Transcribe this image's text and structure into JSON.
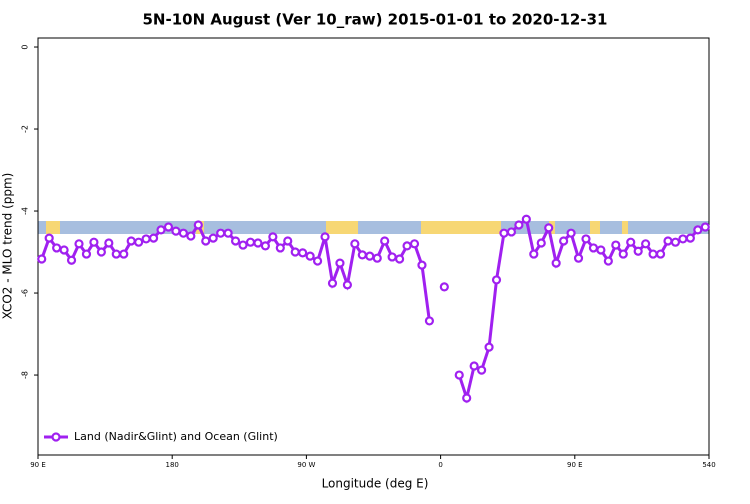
{
  "chart_data": {
    "type": "line",
    "title": "5N-10N August (Ver 10_raw)   2015-01-01 to 2020-12-31",
    "x_label": "Longitude (deg E)",
    "y_label": "XCO2 - MLO trend (ppm)",
    "xlim": [
      90,
      540
    ],
    "ylim": [
      -9.95,
      0.22
    ],
    "xticks": [
      {
        "value": 90,
        "label": "90 E"
      },
      180,
      {
        "value": 270,
        "label": "90 W"
      },
      {
        "value": 360,
        "label": "0"
      },
      {
        "value": 450,
        "label": "90 E"
      },
      540
    ],
    "yticks": [
      0,
      -2,
      -4,
      -6,
      -8
    ],
    "legend": "bottom-left",
    "x": [
      92.5,
      97.5,
      102.5,
      107.5,
      112.5,
      117.5,
      122.5,
      127.5,
      132.5,
      137.5,
      142.5,
      147.5,
      152.5,
      157.5,
      162.5,
      167.5,
      172.5,
      177.5,
      182.5,
      187.5,
      192.5,
      197.5,
      202.5,
      207.5,
      212.5,
      217.5,
      222.5,
      227.5,
      232.5,
      237.5,
      242.5,
      247.5,
      252.5,
      257.5,
      262.5,
      267.5,
      272.5,
      277.5,
      282.5,
      287.5,
      292.5,
      297.5,
      302.5,
      307.5,
      312.5,
      317.5,
      322.5,
      327.5,
      332.5,
      337.5,
      342.5,
      347.5,
      352.5,
      357.5,
      362.5,
      367.5,
      372.5,
      377.5,
      382.5,
      387.5,
      392.5,
      397.5,
      402.5,
      407.5,
      412.5,
      417.5,
      422.5,
      427.5,
      432.5,
      437.5,
      442.5,
      447.5,
      452.5,
      457.5,
      462.5,
      467.5,
      472.5,
      477.5,
      482.5,
      487.5,
      492.5,
      497.5,
      502.5,
      507.5,
      512.5,
      517.5,
      522.5,
      527.5,
      532.5,
      537.5
    ],
    "series": [
      {
        "name": "Land (Nadir&Glint) and Ocean (Glint)",
        "color": "#a020f0",
        "values": [
          -5.17,
          -4.66,
          -4.9,
          -4.95,
          -5.2,
          -4.8,
          -5.05,
          -4.76,
          -5.0,
          -4.78,
          -5.05,
          -5.05,
          -4.73,
          -4.76,
          -4.68,
          -4.66,
          -4.46,
          -4.39,
          -4.49,
          -4.54,
          -4.61,
          -4.34,
          -4.73,
          -4.66,
          -4.54,
          -4.54,
          -4.73,
          -4.83,
          -4.76,
          -4.78,
          -4.85,
          -4.63,
          -4.9,
          -4.73,
          -5.0,
          -5.02,
          -5.1,
          -5.22,
          -4.63,
          -5.76,
          -5.27,
          -5.8,
          -4.8,
          -5.07,
          -5.1,
          -5.15,
          -4.73,
          -5.12,
          -5.17,
          -4.85,
          -4.8,
          -5.32,
          -6.68,
          null,
          -5.85,
          null,
          -8.0,
          -8.56,
          -7.78,
          -7.88,
          -7.32,
          -5.68,
          -4.54,
          -4.51,
          -4.34,
          -4.2,
          -5.05,
          -4.78,
          -4.41,
          -5.27,
          -4.73,
          -4.54,
          -5.15,
          -4.68,
          -4.9,
          -4.95,
          -5.22,
          -4.83,
          -5.05,
          -4.76,
          -4.98,
          -4.8,
          -5.05,
          -5.05,
          -4.73,
          -4.76,
          -4.68,
          -4.66,
          -4.46,
          -4.39
        ]
      }
    ]
  }
}
